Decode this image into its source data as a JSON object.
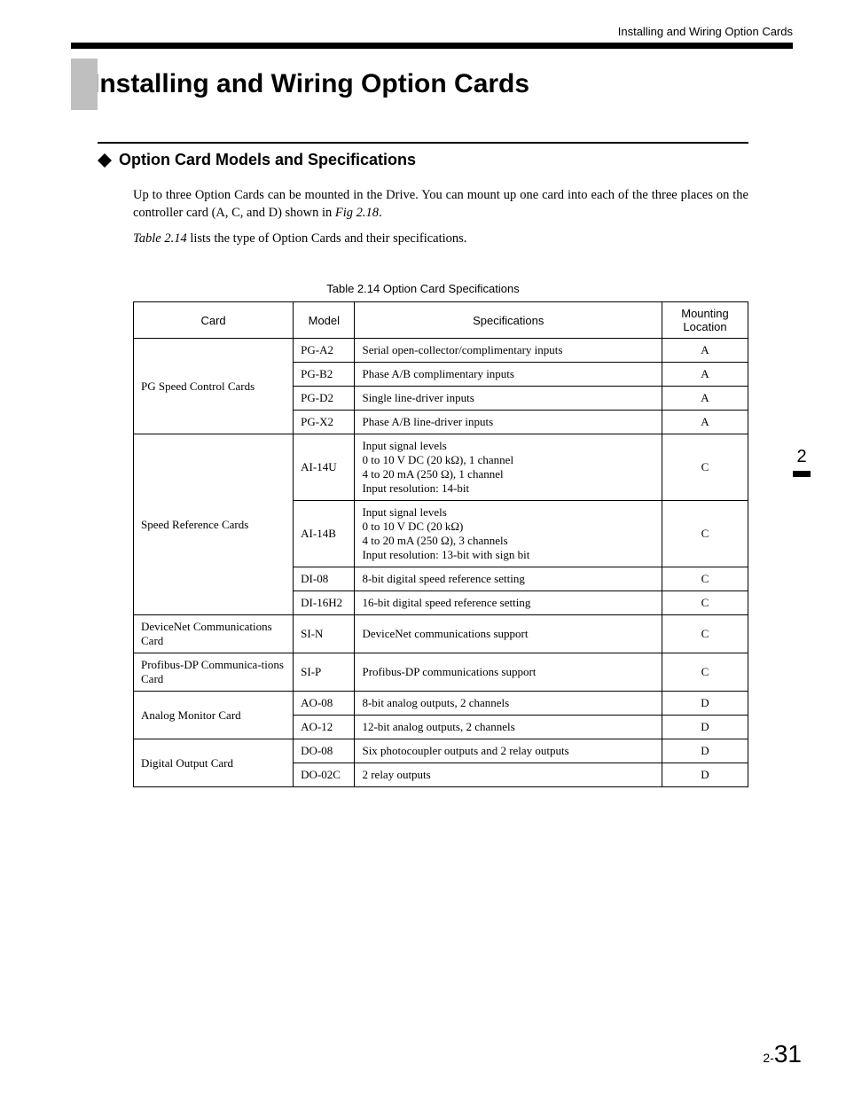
{
  "header": {
    "running_head": "Installing and Wiring Option Cards"
  },
  "title": "Installing and Wiring Option Cards",
  "section": {
    "heading": "Option Card Models and Specifications",
    "paragraph1_a": "Up to three Option Cards can be mounted in the Drive. You can mount up one card into each of the three places on the controller card (A, C, and D) shown in ",
    "figref": "Fig 2.18",
    "paragraph1_b": ".",
    "paragraph2_a": "Table 2.14",
    "paragraph2_b": " lists the type of Option Cards and their specifications.",
    "table_caption": "Table 2.14   Option Card Specifications"
  },
  "table": {
    "columns": [
      "Card",
      "Model",
      "Specifications",
      "Mounting Location"
    ],
    "groups": [
      {
        "card": "PG Speed Control Cards",
        "rows": [
          {
            "model": "PG-A2",
            "spec": "Serial open-collector/complimentary inputs",
            "loc": "A"
          },
          {
            "model": "PG-B2",
            "spec": "Phase A/B complimentary inputs",
            "loc": "A"
          },
          {
            "model": "PG-D2",
            "spec": "Single line-driver inputs",
            "loc": "A"
          },
          {
            "model": "PG-X2",
            "spec": "Phase A/B line-driver inputs",
            "loc": "A"
          }
        ]
      },
      {
        "card": "Speed Reference Cards",
        "rows": [
          {
            "model": "AI-14U",
            "spec": "Input signal levels\n0 to 10 V DC (20 kΩ), 1 channel\n4 to 20 mA (250 Ω), 1 channel\nInput resolution: 14-bit",
            "loc": "C"
          },
          {
            "model": "AI-14B",
            "spec": "Input signal levels\n0 to 10 V DC (20 kΩ)\n4 to 20 mA (250 Ω), 3 channels\nInput resolution: 13-bit with sign bit",
            "loc": "C"
          },
          {
            "model": "DI-08",
            "spec": "8-bit digital speed reference setting",
            "loc": "C"
          },
          {
            "model": "DI-16H2",
            "spec": "16-bit digital speed reference setting",
            "loc": "C"
          }
        ]
      },
      {
        "card": "DeviceNet Communications Card",
        "rows": [
          {
            "model": "SI-N",
            "spec": "DeviceNet communications support",
            "loc": "C"
          }
        ]
      },
      {
        "card": "Profibus-DP Communica-tions Card",
        "rows": [
          {
            "model": "SI-P",
            "spec": "Profibus-DP communications support",
            "loc": "C"
          }
        ]
      },
      {
        "card": "Analog Monitor Card",
        "rows": [
          {
            "model": "AO-08",
            "spec": "8-bit analog outputs, 2 channels",
            "loc": "D"
          },
          {
            "model": "AO-12",
            "spec": "12-bit analog outputs, 2 channels",
            "loc": "D"
          }
        ]
      },
      {
        "card": "Digital Output Card",
        "rows": [
          {
            "model": "DO-08",
            "spec": "Six photocoupler outputs and 2 relay outputs",
            "loc": "D"
          },
          {
            "model": "DO-02C",
            "spec": "2 relay outputs",
            "loc": "D"
          }
        ]
      }
    ]
  },
  "side_tab": "2",
  "page_number": {
    "prefix": "2-",
    "num": "31"
  },
  "colors": {
    "gray_box": "#bfbfbf",
    "rule": "#000000",
    "text": "#000000",
    "bg": "#ffffff"
  }
}
